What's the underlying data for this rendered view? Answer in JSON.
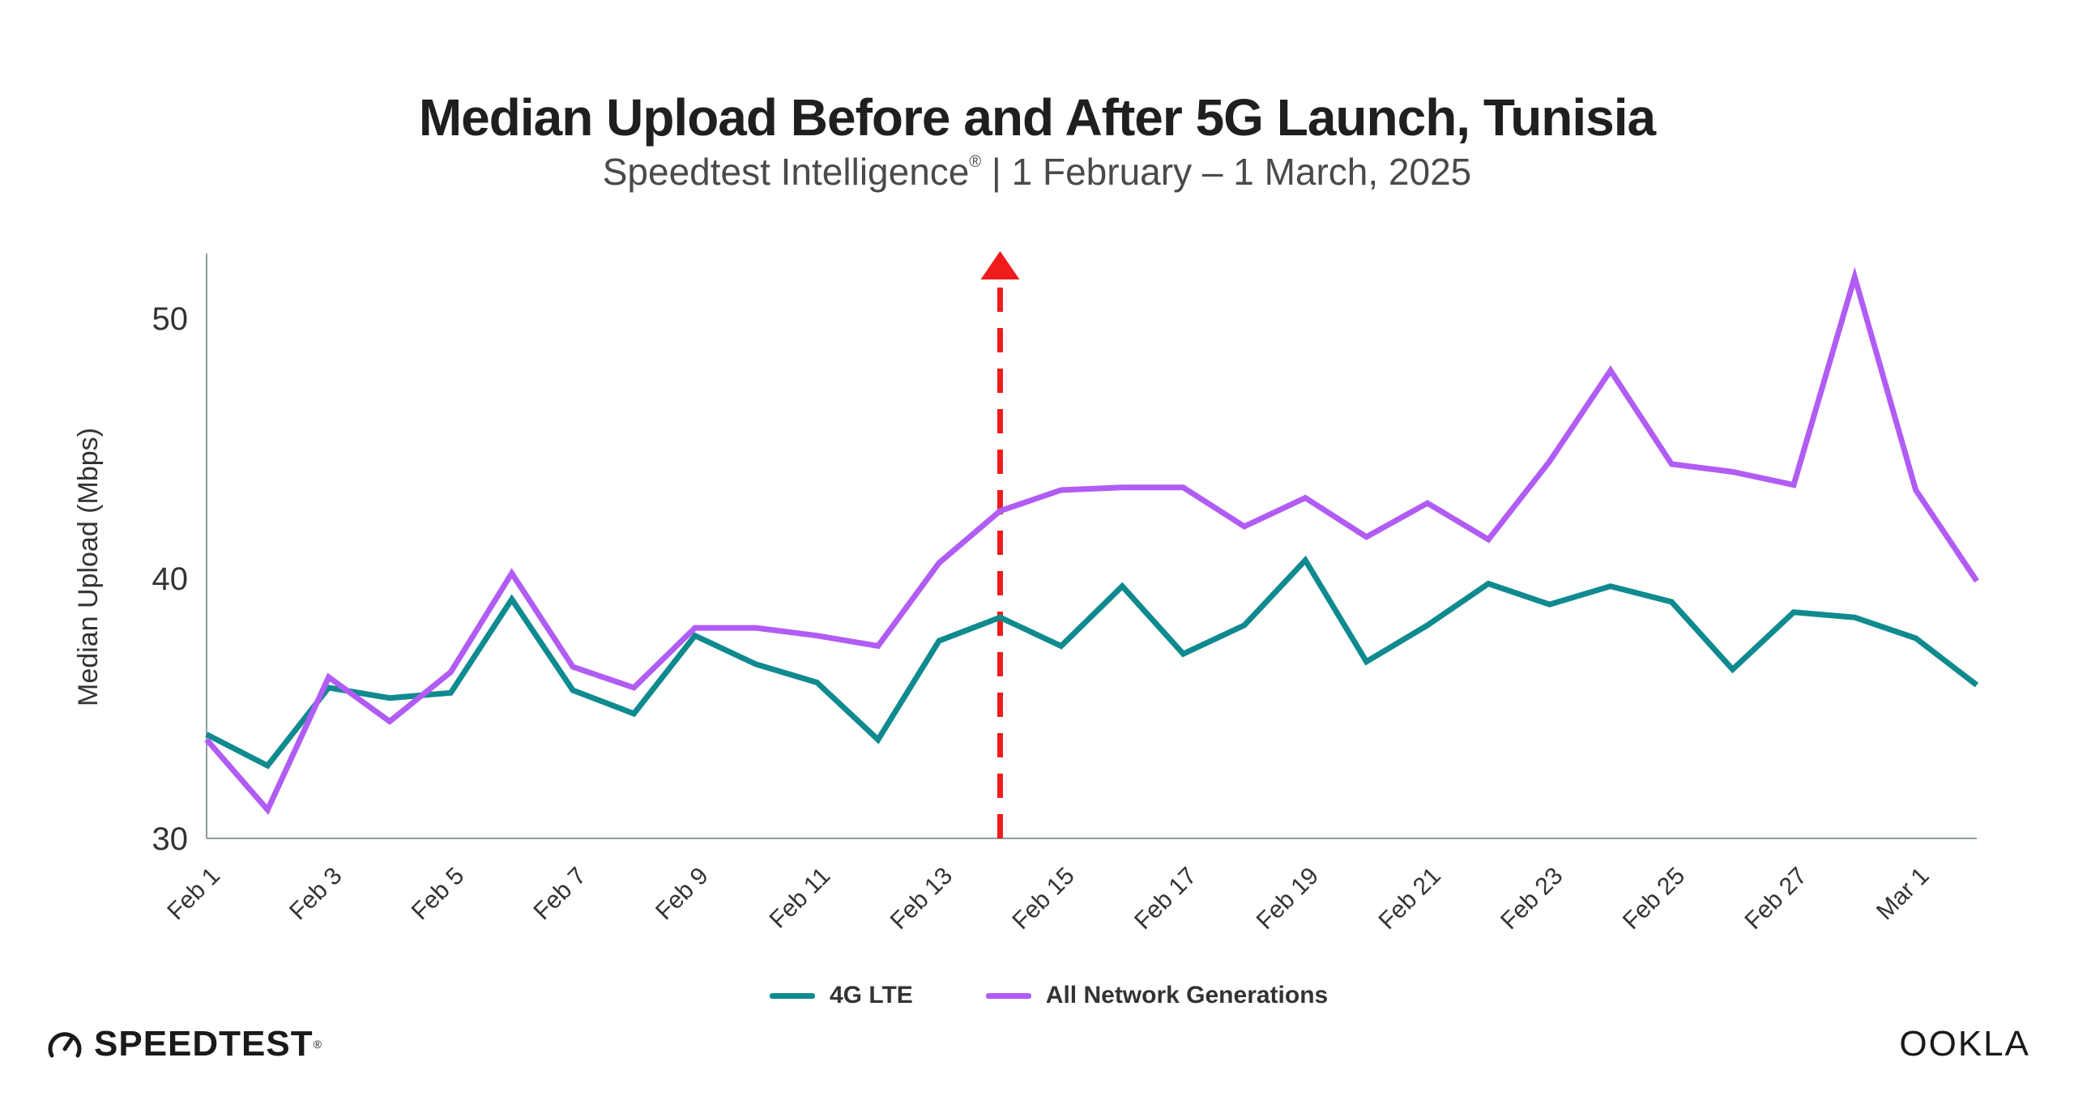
{
  "header": {
    "title": "Median Upload Before and After 5G Launch, Tunisia",
    "subtitle_main": "Speedtest Intelligence",
    "subtitle_mark": "®",
    "subtitle_rest": " | 1 February – 1 March, 2025"
  },
  "legend": {
    "items": [
      {
        "label": "4G LTE",
        "color": "#0f8a8f"
      },
      {
        "label": "All Network Generations",
        "color": "#b15cf4"
      }
    ]
  },
  "branding": {
    "left_logo_text": "SPEEDTEST",
    "left_logo_mark": "®",
    "right_logo_text": "OOKLA"
  },
  "chart_data": {
    "type": "line",
    "title": "Median Upload Before and After 5G Launch, Tunisia",
    "subtitle": "Speedtest Intelligence® | 1 February – 1 March, 2025",
    "xlabel": "",
    "ylabel": "Median Upload (Mbps)",
    "ylim": [
      30,
      52.5
    ],
    "yticks": [
      30,
      40,
      50
    ],
    "x": [
      "Feb 1",
      "Feb 2",
      "Feb 3",
      "Feb 4",
      "Feb 5",
      "Feb 6",
      "Feb 7",
      "Feb 8",
      "Feb 9",
      "Feb 10",
      "Feb 11",
      "Feb 12",
      "Feb 13",
      "Feb 14",
      "Feb 15",
      "Feb 16",
      "Feb 17",
      "Feb 18",
      "Feb 19",
      "Feb 20",
      "Feb 21",
      "Feb 22",
      "Feb 23",
      "Feb 24",
      "Feb 25",
      "Feb 26",
      "Feb 27",
      "Feb 28",
      "Mar 1",
      "Mar 2"
    ],
    "tick_labels": [
      "Feb 1",
      "Feb 3",
      "Feb 5",
      "Feb 7",
      "Feb 9",
      "Feb 11",
      "Feb 13",
      "Feb 15",
      "Feb 17",
      "Feb 19",
      "Feb 21",
      "Feb 23",
      "Feb 25",
      "Feb 27",
      "Mar 1"
    ],
    "series": [
      {
        "name": "4G LTE",
        "color": "#0f8a8f",
        "values": [
          34.0,
          32.8,
          35.8,
          35.4,
          35.6,
          39.2,
          35.7,
          34.8,
          37.8,
          36.7,
          36.0,
          33.8,
          37.6,
          38.5,
          37.4,
          39.7,
          37.1,
          38.2,
          40.7,
          36.8,
          38.2,
          39.8,
          39.0,
          39.7,
          39.1,
          36.5,
          38.7,
          38.5,
          37.7,
          35.9
        ]
      },
      {
        "name": "All Network Generations",
        "color": "#b15cf4",
        "values": [
          33.8,
          31.1,
          36.2,
          34.5,
          36.4,
          40.2,
          36.6,
          35.8,
          38.1,
          38.1,
          37.8,
          37.4,
          40.6,
          42.6,
          43.4,
          43.5,
          43.5,
          42.0,
          43.1,
          41.6,
          42.9,
          41.5,
          44.5,
          48.0,
          44.4,
          44.1,
          43.6,
          51.6,
          43.4,
          39.9
        ]
      }
    ],
    "annotations": [
      {
        "type": "vertical-arrow",
        "at_x": "Feb 14",
        "color": "#ee1c1c",
        "style": "dashed"
      }
    ],
    "grid": false,
    "legend_position": "bottom-center"
  }
}
